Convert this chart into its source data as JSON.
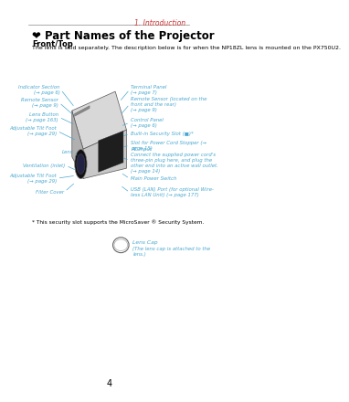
{
  "page_number": "4",
  "chapter": "1. Introduction",
  "section_number": "❤",
  "section_title": "Part Names of the Projector",
  "subsection": "Front/Top",
  "intro_text": "The lens is sold separately. The description below is for when the NP18ZL lens is mounted on the PX750U2.",
  "footnote": "* This security slot supports the MicroSaver ® Security System.",
  "lens_cap_label": "Lens Cap",
  "lens_cap_sub": "(The lens cap is attached to the\nlens.)",
  "bg_color": "#ffffff",
  "line_color": "#4aa8d0",
  "text_color": "#000000",
  "chapter_color": "#cc3333"
}
